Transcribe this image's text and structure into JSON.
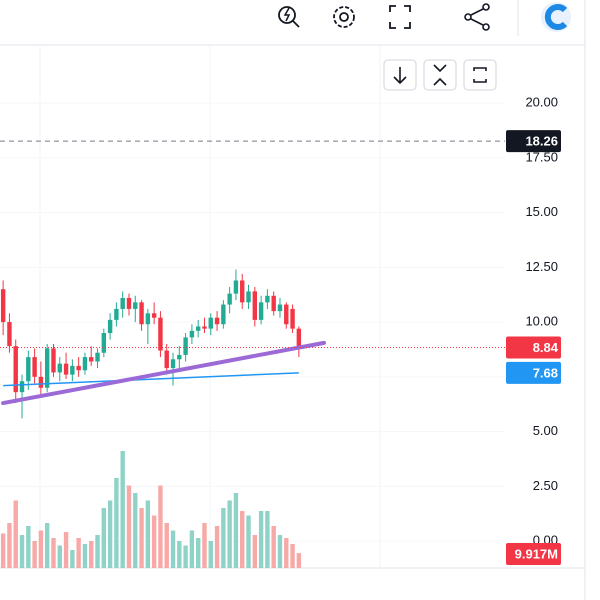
{
  "chart_data": {
    "type": "candlestick",
    "ylim": [
      -1.23,
      22.88
    ],
    "yticks": [
      {
        "value": 0,
        "label": "0.00"
      },
      {
        "value": 2.5,
        "label": "2.50"
      },
      {
        "value": 5,
        "label": "5.00"
      },
      {
        "value": 7.5,
        "label": "7.50"
      },
      {
        "value": 10,
        "label": "10.00"
      },
      {
        "value": 12.5,
        "label": "12.50"
      },
      {
        "value": 15,
        "label": "15.00"
      },
      {
        "value": 17.5,
        "label": "17.50"
      },
      {
        "value": 20,
        "label": "20.00"
      }
    ],
    "up_color": "#22ab94",
    "down_color": "#f23645",
    "open": [
      11.5,
      10.0,
      8.9,
      6.8,
      7.3,
      8.4,
      7.5,
      7.0,
      8.8,
      7.7,
      8.1,
      7.6,
      8.0,
      7.8,
      8.4,
      8.2,
      8.6,
      9.5,
      10.1,
      10.6,
      11.1,
      10.6,
      10.9,
      9.9,
      10.4,
      10.2,
      8.7,
      7.9,
      8.3,
      8.5,
      9.3,
      9.6,
      9.8,
      9.7,
      10.2,
      9.9,
      10.8,
      11.3,
      11.9,
      10.9,
      11.4,
      10.1,
      10.9,
      11.2,
      10.5,
      10.8,
      10.6,
      9.7
    ],
    "high": [
      11.9,
      10.4,
      9.2,
      7.6,
      8.7,
      8.8,
      8.2,
      9.0,
      9.0,
      8.4,
      8.6,
      8.3,
      8.4,
      8.6,
      8.9,
      8.8,
      9.7,
      10.4,
      10.9,
      11.4,
      11.3,
      11.2,
      11.0,
      10.6,
      10.9,
      10.5,
      9.0,
      8.6,
      8.9,
      9.5,
      9.9,
      10.1,
      10.2,
      10.4,
      10.5,
      11.0,
      11.6,
      12.4,
      12.2,
      11.7,
      11.6,
      11.2,
      11.5,
      11.4,
      11.1,
      10.9,
      10.8,
      9.8
    ],
    "low": [
      9.4,
      8.6,
      6.3,
      5.6,
      6.9,
      7.2,
      6.6,
      6.8,
      7.5,
      7.3,
      7.4,
      7.3,
      7.5,
      7.6,
      8.0,
      7.9,
      8.4,
      9.2,
      9.8,
      10.2,
      10.3,
      10.0,
      9.6,
      9.0,
      9.9,
      8.4,
      7.6,
      7.1,
      7.8,
      8.2,
      9.0,
      9.3,
      9.5,
      9.4,
      9.6,
      9.7,
      10.4,
      11.0,
      10.6,
      10.6,
      9.8,
      9.9,
      10.6,
      10.3,
      10.2,
      9.7,
      9.5,
      8.4
    ],
    "close": [
      10.0,
      8.9,
      6.8,
      7.3,
      8.4,
      7.5,
      7.0,
      8.8,
      7.7,
      8.1,
      7.6,
      8.0,
      7.8,
      8.4,
      8.2,
      8.6,
      9.5,
      10.1,
      10.6,
      11.1,
      10.6,
      10.9,
      9.9,
      10.4,
      10.2,
      8.7,
      7.9,
      8.3,
      8.5,
      9.3,
      9.6,
      9.8,
      9.7,
      10.2,
      9.9,
      10.8,
      11.3,
      11.9,
      10.9,
      11.4,
      10.1,
      10.9,
      11.2,
      10.5,
      10.8,
      9.9,
      9.7,
      8.84
    ],
    "volume": {
      "vlim": [
        0,
        100
      ],
      "up_color": "#8fd3c8",
      "down_color": "#f7a9a7",
      "values": [
        23,
        30,
        45,
        22,
        28,
        18,
        25,
        30,
        20,
        15,
        24,
        12,
        20,
        16,
        18,
        22,
        40,
        45,
        60,
        78,
        55,
        50,
        40,
        45,
        35,
        55,
        30,
        25,
        18,
        15,
        25,
        20,
        30,
        18,
        28,
        40,
        45,
        50,
        38,
        35,
        22,
        38,
        38,
        28,
        22,
        20,
        16,
        9.917
      ],
      "value_labels": [
        null,
        null,
        null,
        null,
        null,
        null,
        null,
        null,
        null,
        null,
        null,
        null,
        null,
        null,
        null,
        null,
        null,
        null,
        null,
        null,
        null,
        null,
        null,
        null,
        null,
        null,
        null,
        null,
        null,
        null,
        null,
        null,
        null,
        null,
        null,
        null,
        null,
        null,
        null,
        null,
        null,
        null,
        null,
        null,
        null,
        null,
        null,
        "9.917M"
      ]
    },
    "moving_average": {
      "color": "#2196f3",
      "x": [
        0,
        47
      ],
      "values": [
        7.1,
        7.68
      ]
    },
    "trendline": {
      "color": "#9c6ad6",
      "x": [
        0,
        51
      ],
      "values": [
        6.3,
        9.05
      ]
    },
    "alert_line": 18.26
  }
}
